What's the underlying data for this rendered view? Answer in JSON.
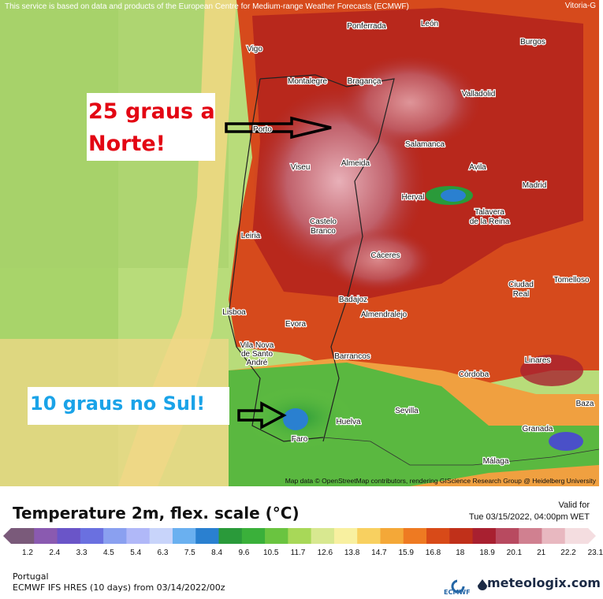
{
  "map": {
    "notice": "This service is based on data and products of the European Centre for Medium-range Weather Forecasts (ECMWF)",
    "corner_city": "Vitoria-G",
    "attribution": "Map data © OpenStreetMap contributors, rendering GIScience Research Group @ Heidelberg University",
    "cities": [
      {
        "name": "Ponferrada"
      },
      {
        "name": "León"
      },
      {
        "name": "Burgos"
      },
      {
        "name": "Vigo"
      },
      {
        "name": "Montalegre"
      },
      {
        "name": "Bragança"
      },
      {
        "name": "Valladolid"
      },
      {
        "name": "Porto"
      },
      {
        "name": "Salamanca"
      },
      {
        "name": "Viseu"
      },
      {
        "name": "Almeida"
      },
      {
        "name": "Avila"
      },
      {
        "name": "Madrid"
      },
      {
        "name": "Herval"
      },
      {
        "name": "Talavera"
      },
      {
        "name": "de la Reina"
      },
      {
        "name": "Castelo"
      },
      {
        "name": "Branco"
      },
      {
        "name": "Leiria"
      },
      {
        "name": "Cáceres"
      },
      {
        "name": "Ciudad"
      },
      {
        "name": "Real"
      },
      {
        "name": "Tomelloso"
      },
      {
        "name": "Badajoz"
      },
      {
        "name": "Almendralejo"
      },
      {
        "name": "Lisboa"
      },
      {
        "name": "Evora"
      },
      {
        "name": "Vila Nova"
      },
      {
        "name": "de Santo"
      },
      {
        "name": "André"
      },
      {
        "name": "Barrancos"
      },
      {
        "name": "Linares"
      },
      {
        "name": "Córdoba"
      },
      {
        "name": "Baza"
      },
      {
        "name": "Sevilla"
      },
      {
        "name": "Huelva"
      },
      {
        "name": "Granada"
      },
      {
        "name": "Faro"
      },
      {
        "name": "Málaga"
      }
    ]
  },
  "annotations": {
    "north": "25 graus a\nNorte!",
    "south": "10 graus no Sul!"
  },
  "legend": {
    "title": "Temperature 2m, flex. scale (°C)",
    "valid_label": "Valid for",
    "valid_time": "Tue 03/15/2022, 04:00pm WET",
    "ticks": [
      "1.2",
      "2.4",
      "3.3",
      "4.5",
      "5.4",
      "6.3",
      "7.5",
      "8.4",
      "9.6",
      "10.5",
      "11.7",
      "12.6",
      "13.8",
      "14.7",
      "15.9",
      "16.8",
      "18",
      "18.9",
      "20.1",
      "21",
      "22.2",
      "23.1"
    ],
    "colors": [
      "#7a5a7a",
      "#8a5ab0",
      "#6a55c8",
      "#6a70e0",
      "#8aa0f0",
      "#b0b8f8",
      "#c8d4fa",
      "#6ab0f0",
      "#2a80d0",
      "#2a9a3a",
      "#3ab03a",
      "#6ac440",
      "#a8d858",
      "#d8e890",
      "#f8f0a0",
      "#f8d060",
      "#f4a838",
      "#ee7a22",
      "#d84a18",
      "#c0301a",
      "#a82030",
      "#b84a60",
      "#d08090",
      "#e8b8c0",
      "#f4dde0"
    ],
    "region": "Portugal",
    "model": "ECMWF IFS HRES (10 days) from 03/14/2022/00z",
    "ecmwf": "ECMWF",
    "brand": "meteologix.com"
  }
}
